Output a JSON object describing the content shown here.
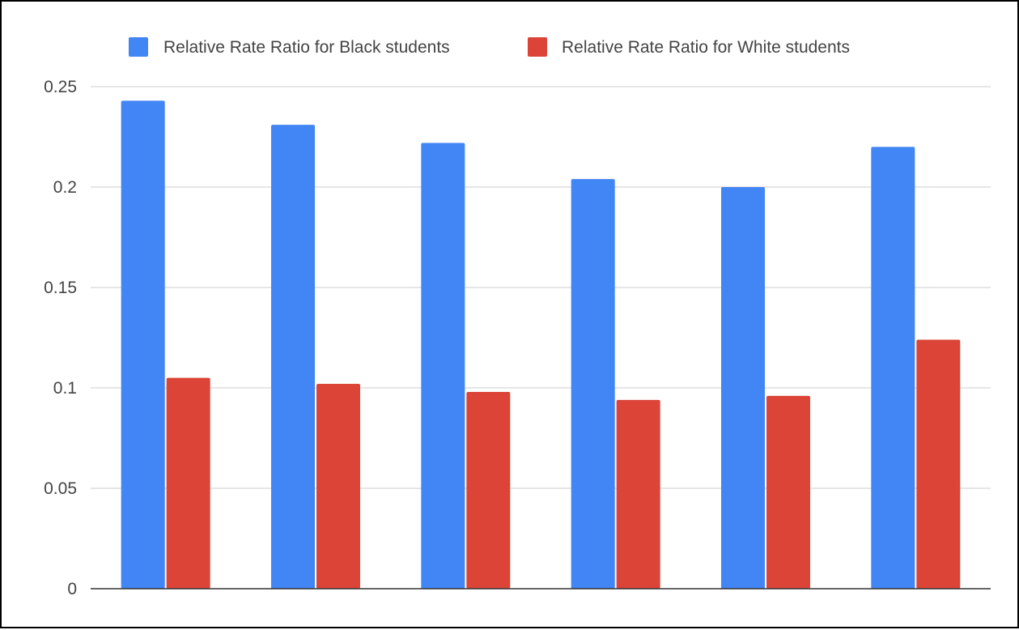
{
  "chart_data": {
    "type": "bar",
    "categories": [
      "",
      "",
      "",
      "",
      "",
      ""
    ],
    "series": [
      {
        "name": "Relative Rate Ratio for Black students",
        "color": "#4285f4",
        "values": [
          0.243,
          0.231,
          0.222,
          0.204,
          0.2,
          0.22
        ]
      },
      {
        "name": "Relative Rate Ratio for White students",
        "color": "#db4437",
        "values": [
          0.105,
          0.102,
          0.098,
          0.094,
          0.096,
          0.124
        ]
      }
    ],
    "y_ticks": [
      "0",
      "0.05",
      "0.1",
      "0.15",
      "0.2",
      "0.25"
    ],
    "ylim": [
      0,
      0.25
    ],
    "grid": true,
    "legend": "top"
  }
}
